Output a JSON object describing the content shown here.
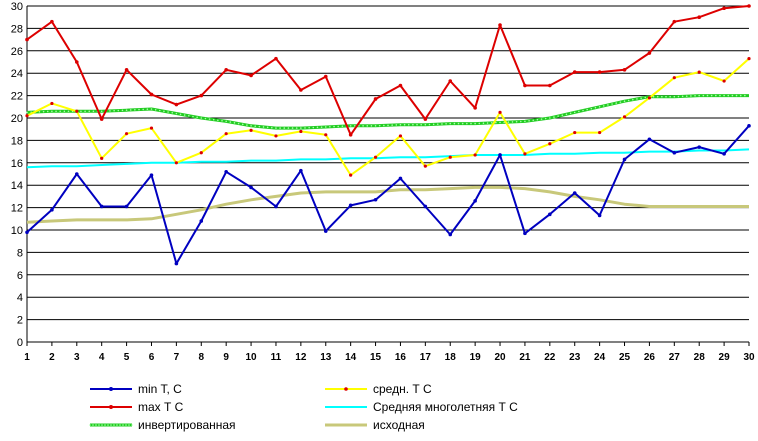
{
  "chart_data": {
    "type": "line",
    "title": "",
    "xlabel": "",
    "ylabel": "",
    "ylim": [
      0,
      30
    ],
    "y_ticks": [
      "0",
      "2",
      "4",
      "6",
      "8",
      "10",
      "12",
      "14",
      "16",
      "18",
      "20",
      "22",
      "24",
      "26",
      "28",
      "30"
    ],
    "categories": [
      "1",
      "2",
      "3",
      "4",
      "5",
      "6",
      "7",
      "8",
      "9",
      "10",
      "11",
      "12",
      "13",
      "14",
      "15",
      "16",
      "17",
      "18",
      "19",
      "20",
      "21",
      "22",
      "23",
      "24",
      "25",
      "26",
      "27",
      "28",
      "29",
      "30"
    ],
    "grid": "horizontal",
    "legend_position": "bottom",
    "series": [
      {
        "name": "min T, C",
        "color": "#0000c0",
        "marker": "dot",
        "values": [
          9.8,
          11.8,
          15.0,
          12.1,
          12.1,
          14.9,
          7.0,
          10.8,
          15.2,
          13.8,
          12.1,
          15.3,
          9.9,
          12.2,
          12.7,
          14.6,
          12.1,
          9.6,
          12.6,
          16.7,
          9.7,
          11.4,
          13.3,
          11.3,
          16.3,
          18.1,
          16.9,
          17.4,
          16.8,
          19.3
        ]
      },
      {
        "name": "средн. Т С",
        "color": "#ffff00",
        "marker": "reddot",
        "values": [
          20.2,
          21.3,
          20.6,
          16.4,
          18.6,
          19.1,
          16.0,
          16.9,
          18.6,
          18.9,
          18.4,
          18.8,
          18.5,
          14.9,
          16.5,
          18.4,
          15.7,
          16.5,
          16.7,
          20.5,
          16.8,
          17.7,
          18.7,
          18.7,
          20.1,
          21.8,
          23.6,
          24.1,
          23.3,
          25.3
        ]
      },
      {
        "name": "max Т С",
        "color": "#dd0000",
        "marker": "dot",
        "values": [
          27.0,
          28.6,
          25.0,
          19.9,
          24.3,
          22.1,
          21.2,
          22.0,
          24.3,
          23.8,
          25.3,
          22.5,
          23.7,
          18.5,
          21.7,
          22.9,
          19.9,
          23.3,
          20.9,
          28.3,
          22.9,
          22.9,
          24.1,
          24.1,
          24.3,
          25.8,
          28.6,
          29.0,
          29.8,
          30.0
        ]
      },
      {
        "name": "Средняя многолетняя Т С",
        "color": "#00ffff",
        "marker": "none",
        "values": [
          15.6,
          15.7,
          15.7,
          15.8,
          15.9,
          16.0,
          16.0,
          16.1,
          16.1,
          16.2,
          16.2,
          16.3,
          16.3,
          16.4,
          16.4,
          16.5,
          16.5,
          16.6,
          16.7,
          16.7,
          16.7,
          16.8,
          16.8,
          16.9,
          16.9,
          17.0,
          17.0,
          17.1,
          17.1,
          17.2
        ]
      },
      {
        "name": "инвертированная",
        "color": "#22cc22",
        "marker": "dots",
        "values": [
          20.5,
          20.6,
          20.6,
          20.6,
          20.7,
          20.8,
          20.4,
          20.0,
          19.7,
          19.3,
          19.1,
          19.1,
          19.2,
          19.3,
          19.3,
          19.4,
          19.4,
          19.5,
          19.5,
          19.6,
          19.7,
          20.0,
          20.5,
          21.0,
          21.5,
          21.9,
          21.9,
          22.0,
          22.0,
          22.0
        ]
      },
      {
        "name": "исходная",
        "color": "#c8c87a",
        "marker": "none",
        "values": [
          10.7,
          10.8,
          10.9,
          10.9,
          10.9,
          11.0,
          11.4,
          11.8,
          12.3,
          12.7,
          13.0,
          13.3,
          13.4,
          13.4,
          13.4,
          13.6,
          13.6,
          13.7,
          13.8,
          13.8,
          13.7,
          13.4,
          13.0,
          12.7,
          12.3,
          12.1,
          12.1,
          12.1,
          12.1,
          12.1
        ]
      }
    ]
  }
}
